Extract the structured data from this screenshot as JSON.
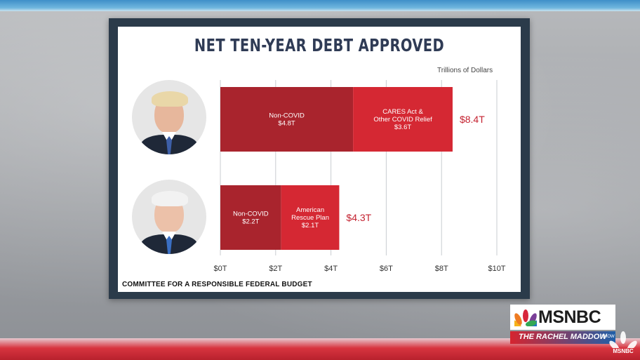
{
  "chart_data": {
    "type": "bar",
    "orientation": "horizontal",
    "stacked": true,
    "title": "NET TEN-YEAR DEBT APPROVED",
    "units_label": "Trillions of Dollars",
    "xlim": [
      0,
      10
    ],
    "x_ticks": [
      {
        "value": 0,
        "label": "$0T"
      },
      {
        "value": 2,
        "label": "$2T"
      },
      {
        "value": 4,
        "label": "$4T"
      },
      {
        "value": 6,
        "label": "$6T"
      },
      {
        "value": 8,
        "label": "$8T"
      },
      {
        "value": 10,
        "label": "$10T"
      }
    ],
    "grid": true,
    "rows": [
      {
        "portrait": "trump-portrait",
        "total_value": 8.4,
        "total_label": "$8.4T",
        "segments": [
          {
            "value": 4.8,
            "label_lines": [
              "Non-COVID",
              "$4.8T"
            ],
            "color": "#a9242d"
          },
          {
            "value": 3.6,
            "label_lines": [
              "CARES Act &",
              "Other COVID Relief",
              "$3.6T"
            ],
            "color": "#d52833"
          }
        ]
      },
      {
        "portrait": "biden-portrait",
        "total_value": 4.3,
        "total_label": "$4.3T",
        "segments": [
          {
            "value": 2.2,
            "label_lines": [
              "Non-COVID",
              "$2.2T"
            ],
            "color": "#a9242d"
          },
          {
            "value": 2.1,
            "label_lines": [
              "American",
              "Rescue Plan",
              "$2.1T"
            ],
            "color": "#d52833"
          }
        ]
      }
    ],
    "total_label_color": "#c42230",
    "source": "COMMITTEE FOR A RESPONSIBLE FEDERAL BUDGET"
  },
  "broadcast": {
    "network": "MSNBC",
    "show_name": "THE RACHEL MADDOW",
    "show_suffix": "SHOW",
    "bug_label": "MSNBC"
  }
}
